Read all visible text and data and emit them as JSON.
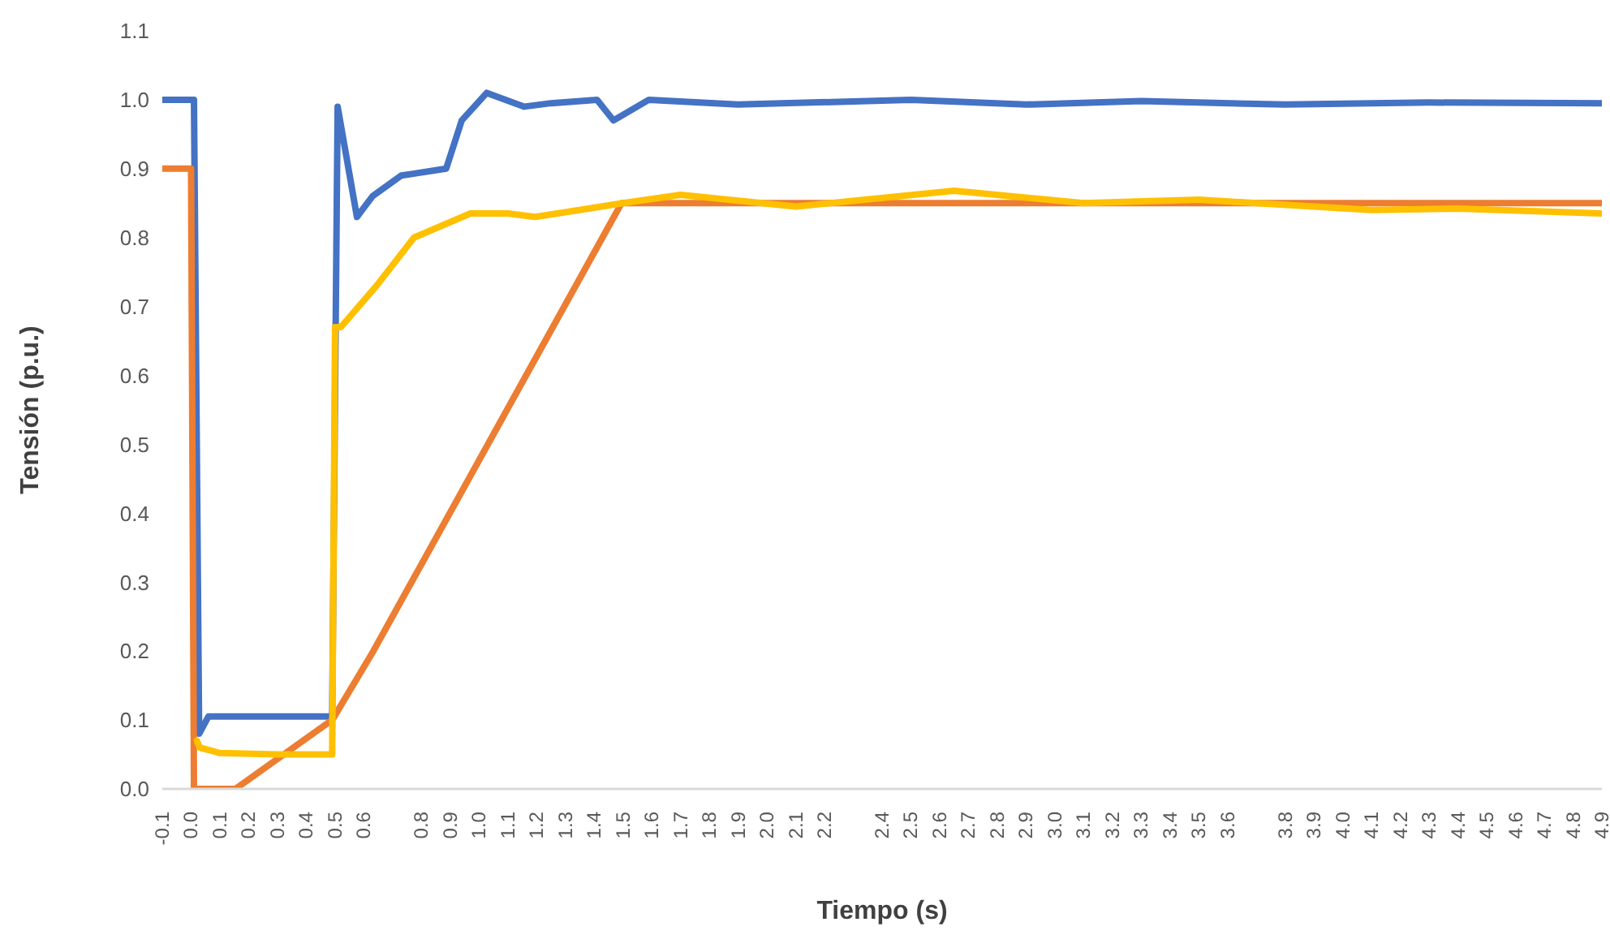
{
  "chart_data": {
    "type": "line",
    "xlabel": "Tiempo (s)",
    "ylabel": "Tensión (p.u.)",
    "xlim": [
      -0.1,
      4.9
    ],
    "ylim": [
      0,
      1.1
    ],
    "xticks": [
      -0.1,
      {
        "value": 0,
        "label": "0.0"
      },
      0.1,
      0.2,
      0.3,
      0.4,
      0.5,
      0.6,
      0.8,
      0.9,
      {
        "value": 1,
        "label": "1.0"
      },
      1.1,
      1.2,
      1.3,
      1.4,
      1.5,
      1.6,
      1.7,
      1.8,
      1.9,
      {
        "value": 2,
        "label": "2.0"
      },
      2.1,
      2.2,
      2.4,
      2.5,
      2.6,
      2.7,
      2.8,
      2.9,
      {
        "value": 3,
        "label": "3.0"
      },
      3.1,
      3.2,
      3.3,
      3.4,
      3.5,
      3.6,
      3.8,
      3.9,
      {
        "value": 4,
        "label": "4.0"
      },
      4.1,
      4.2,
      4.3,
      4.4,
      4.5,
      4.6,
      4.7,
      4.8,
      4.9
    ],
    "yticks": [
      {
        "value": 0,
        "label": "0.0"
      },
      0.1,
      0.2,
      0.3,
      0.4,
      0.5,
      0.6,
      0.7,
      0.8,
      0.9,
      {
        "value": 1,
        "label": "1.0"
      },
      1.1
    ],
    "grid": false,
    "legend": false,
    "marker": "none",
    "line_style": "solid",
    "series": [
      {
        "color": "#4472c4",
        "x": [
          -0.1,
          0.01,
          0.028,
          0.06,
          0.2,
          0.49,
          0.509,
          0.576,
          0.63,
          0.73,
          0.886,
          0.94,
          1.027,
          1.157,
          1.25,
          1.41,
          1.467,
          1.59,
          1.9,
          2.5,
          2.9,
          3.3,
          3.8,
          4.3,
          4.9
        ],
        "values": [
          1.0,
          1.0,
          0.08,
          0.105,
          0.105,
          0.105,
          0.99,
          0.83,
          0.86,
          0.89,
          0.9,
          0.97,
          1.01,
          0.99,
          0.995,
          1.0,
          0.97,
          1.0,
          0.993,
          1.0,
          0.993,
          0.998,
          0.993,
          0.996,
          0.995
        ]
      },
      {
        "color": "#ed7d31",
        "x": [
          -0.1,
          0.0,
          0.01,
          0.154,
          0.49,
          0.633,
          1.495,
          4.9
        ],
        "values": [
          0.9,
          0.9,
          0.0,
          0.0,
          0.1,
          0.2,
          0.85,
          0.85
        ]
      },
      {
        "color": "#ffc000",
        "x": [
          0.02,
          0.03,
          0.1,
          0.3,
          0.49,
          0.5,
          0.52,
          0.644,
          0.774,
          0.97,
          1.1,
          1.195,
          1.5,
          1.7,
          2.1,
          2.65,
          3.1,
          3.5,
          4.1,
          4.4,
          4.9
        ],
        "values": [
          0.07,
          0.06,
          0.052,
          0.05,
          0.05,
          0.67,
          0.67,
          0.73,
          0.8,
          0.835,
          0.835,
          0.83,
          0.85,
          0.862,
          0.845,
          0.868,
          0.85,
          0.855,
          0.84,
          0.842,
          0.835
        ]
      }
    ]
  }
}
